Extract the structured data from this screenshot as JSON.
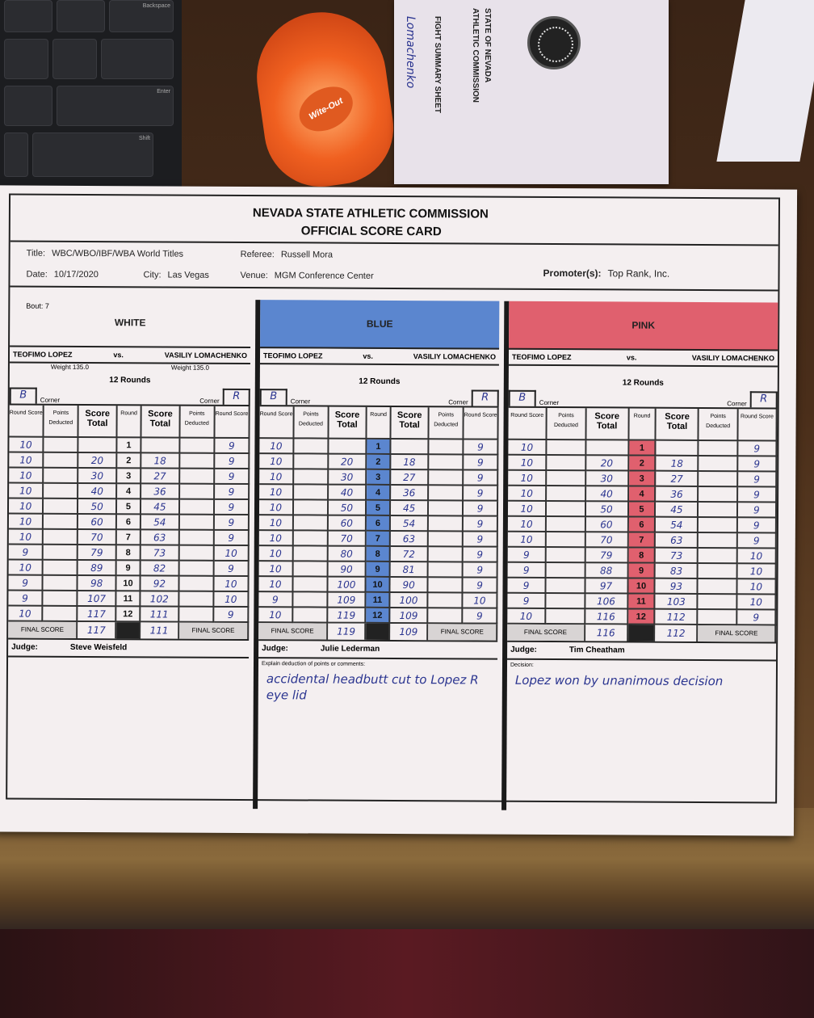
{
  "background": {
    "tape_label": "Wite-Out",
    "envelope": {
      "line1": "STATE OF NEVADA",
      "line2": "ATHLETIC COMMISSION",
      "line3": "FIGHT SUMMARY SHEET",
      "handwriting": "Lomachenko"
    }
  },
  "card": {
    "org": "NEVADA STATE ATHLETIC COMMISSION",
    "subtitle": "OFFICIAL SCORE CARD",
    "title_label": "Title:",
    "title": "WBC/WBO/IBF/WBA World Titles",
    "date_label": "Date:",
    "date": "10/17/2020",
    "city_label": "City:",
    "city": "Las Vegas",
    "referee_label": "Referee:",
    "referee": "Russell Mora",
    "venue_label": "Venue:",
    "venue": "MGM Conference Center",
    "promoter_label": "Promoter(s):",
    "promoter": "Top Rank, Inc.",
    "bout": "Bout: 7",
    "corner_label": "Corner",
    "columns": [
      "Round Score",
      "Points Deducted",
      "Score Total",
      "Round",
      "Score Total",
      "Points Deducted",
      "Round Score"
    ],
    "final_label": "FINAL SCORE",
    "judge_label": "Judge:"
  },
  "panels": [
    {
      "color_name": "WHITE",
      "color": "#f4eff0",
      "fighter_left": "TEOFIMO LOPEZ",
      "vs": "vs.",
      "fighter_right": "VASILIY LOMACHENKO",
      "weight_label": "Weight",
      "weight_left": "135.0",
      "weight_right": "135.0",
      "rounds": "12 Rounds",
      "corner_left": "B",
      "corner_right": "R",
      "left_scores": [
        "10",
        "10",
        "10",
        "10",
        "10",
        "10",
        "10",
        "9",
        "10",
        "9",
        "9",
        "10"
      ],
      "left_totals": [
        "",
        "20",
        "30",
        "40",
        "50",
        "60",
        "70",
        "79",
        "89",
        "98",
        "107",
        "117"
      ],
      "right_totals": [
        "",
        "18",
        "27",
        "36",
        "45",
        "54",
        "63",
        "73",
        "82",
        "92",
        "102",
        "111"
      ],
      "right_scores": [
        "9",
        "9",
        "9",
        "9",
        "9",
        "9",
        "9",
        "10",
        "9",
        "10",
        "10",
        "9"
      ],
      "final_left": "117",
      "final_right": "111",
      "judge": "Steve Weisfeld",
      "comment_label": "",
      "comment": ""
    },
    {
      "color_name": "BLUE",
      "color": "#5b86cf",
      "fighter_left": "TEOFIMO LOPEZ",
      "vs": "vs.",
      "fighter_right": "VASILIY LOMACHENKO",
      "rounds": "12 Rounds",
      "corner_left": "B",
      "corner_right": "R",
      "left_scores": [
        "10",
        "10",
        "10",
        "10",
        "10",
        "10",
        "10",
        "10",
        "10",
        "10",
        "9",
        "10"
      ],
      "left_totals": [
        "",
        "20",
        "30",
        "40",
        "50",
        "60",
        "70",
        "80",
        "90",
        "100",
        "109",
        "119"
      ],
      "right_totals": [
        "",
        "18",
        "27",
        "36",
        "45",
        "54",
        "63",
        "72",
        "81",
        "90",
        "100",
        "109"
      ],
      "right_scores": [
        "9",
        "9",
        "9",
        "9",
        "9",
        "9",
        "9",
        "9",
        "9",
        "9",
        "10",
        "9"
      ],
      "final_left": "119",
      "final_right": "109",
      "judge": "Julie Lederman",
      "comment_label": "Explain deduction of points or comments:",
      "comment": "accidental headbutt cut to Lopez R eye lid"
    },
    {
      "color_name": "PINK",
      "color": "#e0606e",
      "fighter_left": "TEOFIMO LOPEZ",
      "vs": "vs.",
      "fighter_right": "VASILIY LOMACHENKO",
      "rounds": "12 Rounds",
      "corner_left": "B",
      "corner_right": "R",
      "left_scores": [
        "10",
        "10",
        "10",
        "10",
        "10",
        "10",
        "10",
        "9",
        "9",
        "9",
        "9",
        "10"
      ],
      "left_totals": [
        "",
        "20",
        "30",
        "40",
        "50",
        "60",
        "70",
        "79",
        "88",
        "97",
        "106",
        "116"
      ],
      "right_totals": [
        "",
        "18",
        "27",
        "36",
        "45",
        "54",
        "63",
        "73",
        "83",
        "93",
        "103",
        "112"
      ],
      "right_scores": [
        "9",
        "9",
        "9",
        "9",
        "9",
        "9",
        "9",
        "10",
        "10",
        "10",
        "10",
        "9"
      ],
      "final_left": "116",
      "final_right": "112",
      "judge": "Tim Cheatham",
      "comment_label": "Decision:",
      "comment": "Lopez won by unanimous decision"
    }
  ]
}
